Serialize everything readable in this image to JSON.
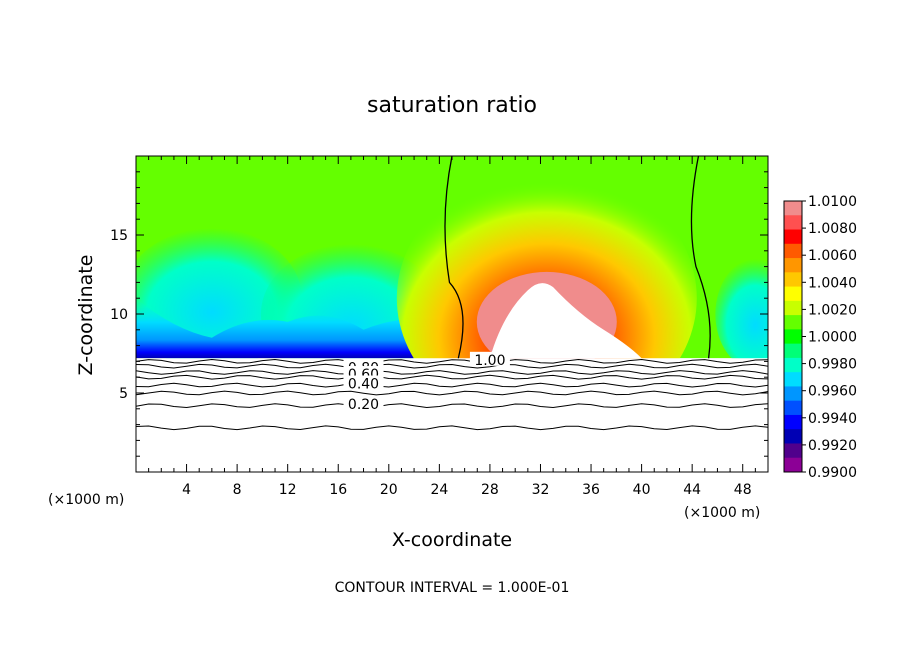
{
  "chart_data": {
    "type": "heatmap",
    "title": "saturation ratio",
    "xlabel": "X-coordinate",
    "ylabel": "Z-coordinate",
    "x_unit": "(×1000 m)",
    "x_unit_right": "(×1000 m)",
    "xlim": [
      0,
      50
    ],
    "ylim": [
      0,
      20
    ],
    "x_ticks": [
      "4",
      "8",
      "12",
      "16",
      "20",
      "24",
      "28",
      "32",
      "36",
      "40",
      "44",
      "48"
    ],
    "y_ticks": [
      "5",
      "10",
      "15"
    ],
    "colorbar": {
      "min": 0.99,
      "max": 1.01,
      "labels": [
        "1.0100",
        "1.0080",
        "1.0060",
        "1.0040",
        "1.0020",
        "1.0000",
        "0.9980",
        "0.9960",
        "0.9940",
        "0.9920",
        "0.9900"
      ],
      "colors": [
        "#f08c8c",
        "#ff5050",
        "#ff0000",
        "#ff5a00",
        "#ff9600",
        "#ffc800",
        "#ffff00",
        "#c8ff00",
        "#64ff00",
        "#00ff00",
        "#00ff78",
        "#00ffc8",
        "#00dcff",
        "#0096ff",
        "#0050ff",
        "#0000ff",
        "#0000b4",
        "#50008c",
        "#8c0096"
      ]
    },
    "contour_labels": [
      "0.80",
      "0.60",
      "0.40",
      "0.20",
      "1.00"
    ],
    "annotation": "CONTOUR INTERVAL = 1.000E-01",
    "clear_air_max_z": 7.2
  }
}
